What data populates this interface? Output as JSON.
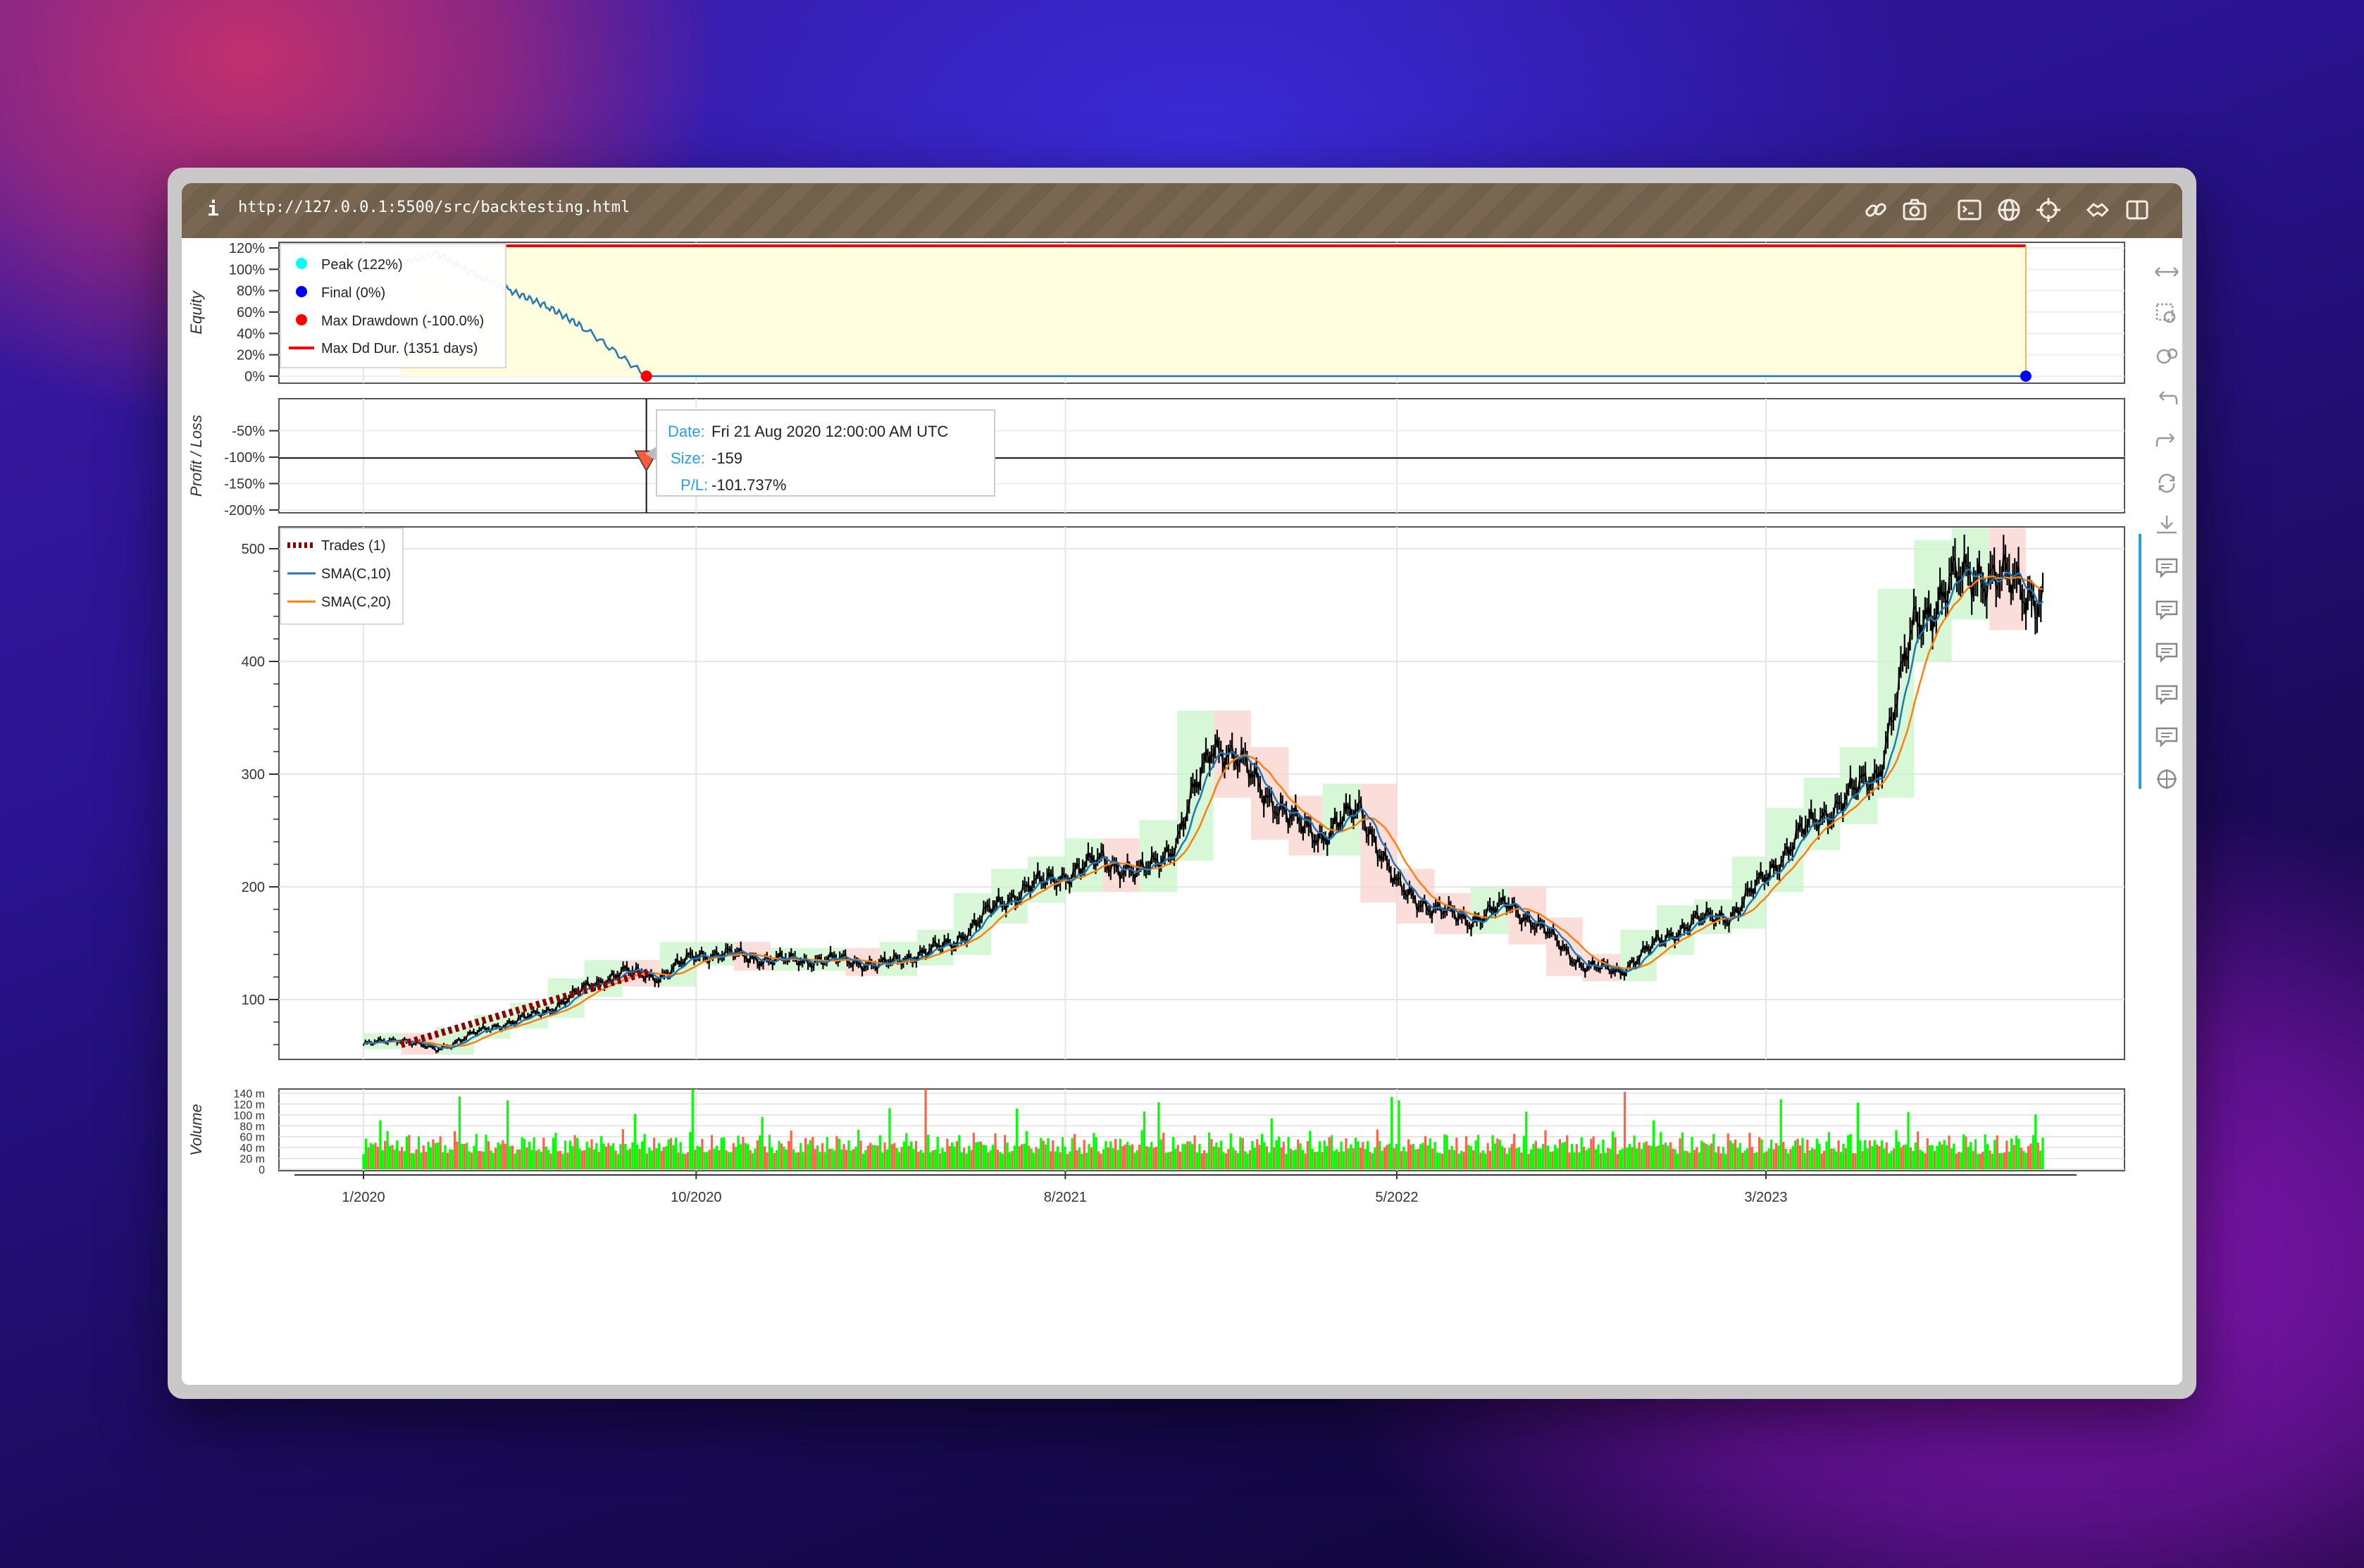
{
  "browser": {
    "info_label": "i",
    "url": "http://127.0.0.1:5500/src/backtesting.html",
    "toolbar_icons": [
      "link-icon",
      "camera-icon",
      "terminal-icon",
      "globe-icon",
      "crosshair-icon",
      "extension-icon",
      "sidebar-icon"
    ]
  },
  "colors": {
    "equity_line": "#1f77b4",
    "sma10": "#1f77b4",
    "sma20": "#ff7f0e",
    "trade": "#8b0000",
    "peak": "#00ffff",
    "final": "#0000ff",
    "drawdown": "#ff0000",
    "volume_up": "#00ff00",
    "volume_down": "#ff6347",
    "drawdown_fill": "#ffffe0"
  },
  "chart_data": [
    {
      "panel": "equity",
      "type": "line",
      "ylabel": "Equity",
      "yticks": [
        "0%",
        "20%",
        "40%",
        "60%",
        "80%",
        "100%",
        "120%"
      ],
      "ylim": [
        0,
        120
      ],
      "x": [
        "2020-01",
        "2020-02",
        "2020-03",
        "2020-04",
        "2020-05",
        "2020-06",
        "2020-07",
        "2020-08-21",
        "2021-06",
        "2022-06",
        "2023-06",
        "2023-10"
      ],
      "values": [
        100,
        105,
        115,
        95,
        80,
        65,
        45,
        0,
        0,
        0,
        0,
        0
      ],
      "legend": [
        {
          "label": "Peak (122%)",
          "marker": "circle",
          "color": "#00ffff"
        },
        {
          "label": "Final (0%)",
          "marker": "circle",
          "color": "#0000ff"
        },
        {
          "label": "Max Drawdown (-100.0%)",
          "marker": "circle",
          "color": "#ff0000"
        },
        {
          "label": "Max Dd Dur. (1351 days)",
          "marker": "line",
          "color": "#ff0000"
        }
      ],
      "peak_value": 122,
      "max_dd_duration_days": 1351
    },
    {
      "panel": "profit_loss",
      "type": "scatter",
      "ylabel": "Profit / Loss",
      "yticks": [
        "-200%",
        "-150%",
        "-100%",
        "-50%"
      ],
      "ylim": [
        -200,
        0
      ],
      "points": [
        {
          "x": "2020-08-21",
          "y": -101.737,
          "marker": "triangle-down"
        }
      ],
      "tooltip": {
        "date_label": "Date:",
        "date_value": "Fri 21 Aug 2020 12:00:00 AM UTC",
        "size_label": "Size:",
        "size_value": "-159",
        "pl_label": "P/L:",
        "pl_value": "-101.737%"
      }
    },
    {
      "panel": "ohlc",
      "type": "line",
      "yticks": [
        "100",
        "200",
        "300",
        "400",
        "500"
      ],
      "ylim": [
        35,
        515
      ],
      "xticks": [
        "1/2020",
        "10/2020",
        "8/2021",
        "5/2022",
        "3/2023"
      ],
      "legend": [
        {
          "label": "Trades (1)",
          "color": "#8b0000"
        },
        {
          "label": "SMA(C,10)",
          "color": "#1f77b4"
        },
        {
          "label": "SMA(C,20)",
          "color": "#ff7f0e"
        }
      ],
      "x": [
        "2020-01",
        "2020-02",
        "2020-03",
        "2020-04",
        "2020-05",
        "2020-06",
        "2020-07",
        "2020-08",
        "2020-09",
        "2020-10",
        "2020-11",
        "2020-12",
        "2021-01",
        "2021-02",
        "2021-03",
        "2021-04",
        "2021-05",
        "2021-06",
        "2021-07",
        "2021-08",
        "2021-09",
        "2021-10",
        "2021-11",
        "2021-12",
        "2022-01",
        "2022-02",
        "2022-03",
        "2022-04",
        "2022-05",
        "2022-06",
        "2022-07",
        "2022-08",
        "2022-09",
        "2022-10",
        "2022-11",
        "2022-12",
        "2023-01",
        "2023-02",
        "2023-03",
        "2023-04",
        "2023-05",
        "2023-06",
        "2023-07",
        "2023-08",
        "2023-09",
        "2023-10"
      ],
      "close": [
        60,
        65,
        55,
        70,
        80,
        90,
        110,
        125,
        120,
        140,
        140,
        135,
        135,
        135,
        130,
        140,
        150,
        180,
        200,
        210,
        225,
        210,
        240,
        330,
        300,
        260,
        245,
        270,
        200,
        180,
        170,
        185,
        160,
        130,
        125,
        150,
        170,
        175,
        210,
        250,
        275,
        300,
        430,
        470,
        480,
        460
      ],
      "trade": {
        "entry_x": "2020-02",
        "entry_y": 60,
        "exit_x": "2020-08",
        "exit_y": 125
      }
    },
    {
      "panel": "volume",
      "type": "bar",
      "ylabel": "Volume",
      "yticks": [
        "0",
        "20 m",
        "40 m",
        "60 m",
        "80 m",
        "100 m",
        "120 m",
        "140 m"
      ],
      "ylim": [
        0,
        140
      ]
    }
  ],
  "sidebar_tools": [
    "pan-icon",
    "box-zoom-icon",
    "wheel-zoom-icon",
    "undo-icon",
    "redo-icon",
    "reset-icon",
    "save-icon",
    "hover-icon",
    "hover-icon",
    "hover-icon",
    "hover-icon",
    "hover-icon",
    "crosshair-icon"
  ]
}
